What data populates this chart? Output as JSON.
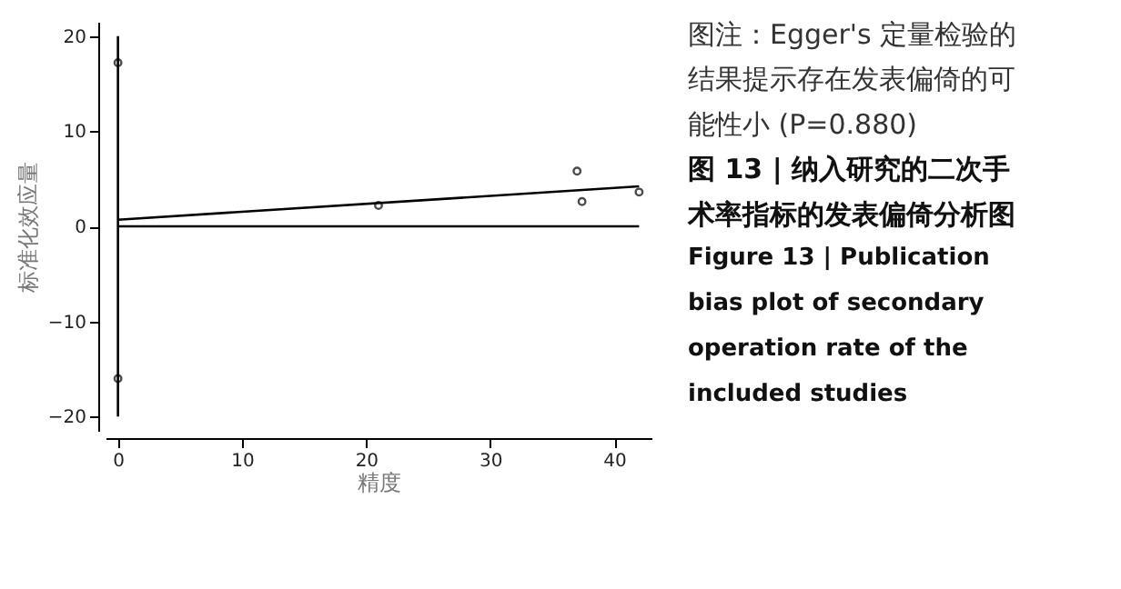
{
  "chart_data": {
    "type": "scatter",
    "xlabel": "精度",
    "ylabel": "标准化效应量",
    "xlim": [
      -1,
      43
    ],
    "ylim": [
      -21.5,
      21.5
    ],
    "xticks": [
      0,
      10,
      20,
      30,
      40
    ],
    "yticks": [
      -20,
      -10,
      0,
      10,
      20
    ],
    "grid": false,
    "series": [
      {
        "marker": "circle",
        "color": "#000000",
        "x": [
          21,
          37,
          37.4,
          42
        ],
        "values": [
          2.2,
          5.8,
          2.6,
          3.6
        ]
      },
      {
        "type": "line",
        "line_style": "solid",
        "color": "#000000",
        "x": [
          0,
          42
        ],
        "values": [
          0.7,
          4.2
        ]
      },
      {
        "type": "line",
        "line_style": "solid",
        "color": "#000000",
        "x": [
          0,
          42
        ],
        "values": [
          0,
          0
        ]
      },
      {
        "type": "line",
        "line_style": "solid",
        "color": "#000000",
        "x": [
          0,
          0
        ],
        "values": [
          -20,
          20
        ]
      },
      {
        "marker": "circle",
        "color": "#000000",
        "x": [
          0,
          0
        ],
        "values": [
          17.2,
          -16
        ]
      }
    ],
    "annotations": [
      "图注：Egger's 定量检验的结果提示存在发表偏倚的可能性小 (P=0.880)",
      "图 13 | 纳入研究的二次手术率指标的发表偏倚分析图",
      "Figure 13 | Publication bias plot of secondary operation rate of the included studies"
    ]
  }
}
